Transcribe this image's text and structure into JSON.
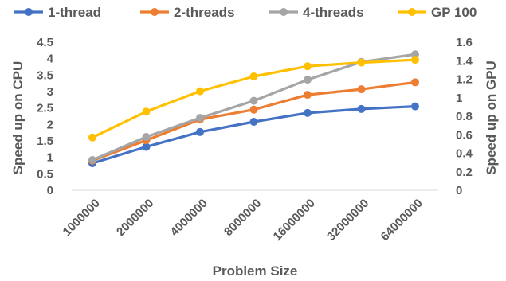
{
  "chart_data": {
    "type": "line",
    "title": "",
    "xlabel": "Problem Size",
    "ylabel": "Speed up on CPU",
    "y2label": "Speed up on GPU",
    "ylim": [
      0,
      4.5
    ],
    "y2lim": [
      0,
      1.6
    ],
    "yticks": [
      "0",
      "0.5",
      "1",
      "1.5",
      "2",
      "2.5",
      "3",
      "3.5",
      "4",
      "4.5"
    ],
    "y2ticks": [
      "0",
      "0.2",
      "0.4",
      "0.6",
      "0.8",
      "1",
      "1.2",
      "1.4",
      "1.6"
    ],
    "categories": [
      "1000000",
      "2000000",
      "4000000",
      "8000000",
      "16000000",
      "32000000",
      "64000000"
    ],
    "legend_position": "top",
    "grid": false,
    "series": [
      {
        "name": "1-thread",
        "axis": "left",
        "color": "#4472C4",
        "values": [
          0.82,
          1.32,
          1.77,
          2.08,
          2.35,
          2.47,
          2.55
        ]
      },
      {
        "name": "2-threads",
        "axis": "left",
        "color": "#ED7D31",
        "values": [
          0.9,
          1.52,
          2.15,
          2.45,
          2.9,
          3.07,
          3.28
        ]
      },
      {
        "name": "4-threads",
        "axis": "left",
        "color": "#A5A5A5",
        "values": [
          0.92,
          1.62,
          2.2,
          2.72,
          3.36,
          3.9,
          4.13
        ]
      },
      {
        "name": "GP 100",
        "axis": "right",
        "color": "#FFC000",
        "values": [
          0.57,
          0.85,
          1.07,
          1.23,
          1.34,
          1.38,
          1.41
        ]
      }
    ]
  }
}
